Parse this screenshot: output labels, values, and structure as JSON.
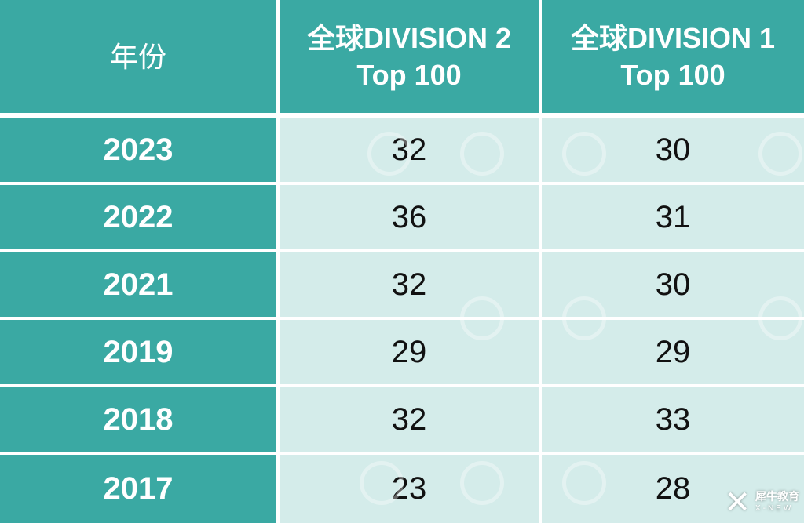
{
  "header": {
    "col1": "年份",
    "col2_line1": "全球DIVISION 2",
    "col2_line2": "Top 100",
    "col3_line1": "全球DIVISION 1",
    "col3_line2": "Top 100"
  },
  "rows": [
    {
      "year": "2023",
      "div2": "32",
      "div1": "30"
    },
    {
      "year": "2022",
      "div2": "36",
      "div1": "31"
    },
    {
      "year": "2021",
      "div2": "32",
      "div1": "30"
    },
    {
      "year": "2019",
      "div2": "29",
      "div1": "29"
    },
    {
      "year": "2018",
      "div2": "32",
      "div1": "33"
    },
    {
      "year": "2017",
      "div2": "23",
      "div1": "28"
    }
  ],
  "brand": {
    "name": "犀牛教育",
    "sub": "X-NEW"
  },
  "colors": {
    "teal": "#3aa9a3",
    "light_cell": "#d4ecea"
  }
}
